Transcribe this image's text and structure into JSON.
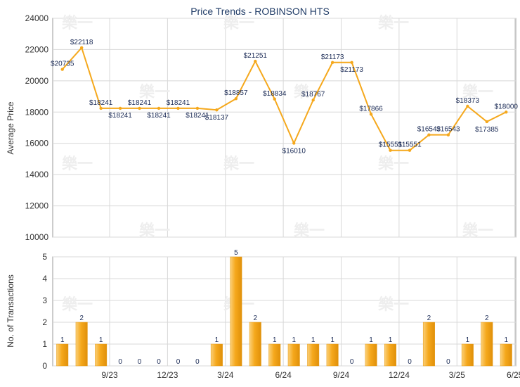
{
  "chart_data": [
    {
      "type": "line",
      "title": "Price Trends - ROBINSON HTS",
      "ylabel": "Average Price",
      "ylim": [
        10000,
        24000
      ],
      "yticks": [
        10000,
        12000,
        14000,
        16000,
        18000,
        20000,
        22000,
        24000
      ],
      "color": "#f5a81c",
      "series": [
        {
          "values": [
            20735,
            22118,
            18241,
            18241,
            18241,
            18241,
            18241,
            18241,
            18137,
            18857,
            21251,
            18834,
            16010,
            18767,
            21173,
            21173,
            17866,
            15551,
            15551,
            16543,
            16543,
            18373,
            17385,
            18000
          ],
          "labels": [
            "$20735",
            "$22118",
            "$18241",
            "$18241",
            "$18241",
            "$18241",
            "$18241",
            "$18241",
            "$18137",
            "$18857",
            "$21251",
            "$18834",
            "$16010",
            "$18767",
            "$21173",
            "$21173",
            "$17866",
            "$15551",
            "$15551",
            "$16543",
            "$16543",
            "$18373",
            "$17385",
            "$18000"
          ]
        }
      ]
    },
    {
      "type": "bar",
      "ylabel": "No. of Transactions",
      "ylim": [
        0,
        5
      ],
      "yticks": [
        0,
        1,
        2,
        3,
        4,
        5
      ],
      "color": "#f5a81c",
      "values": [
        1,
        2,
        1,
        0,
        0,
        0,
        0,
        0,
        1,
        5,
        2,
        1,
        1,
        1,
        1,
        0,
        1,
        1,
        0,
        2,
        0,
        1,
        2,
        1
      ],
      "value_labels": [
        "1",
        "2",
        "1",
        "0",
        "0",
        "0",
        "0",
        "0",
        "1",
        "5",
        "2",
        "1",
        "1",
        "1",
        "1",
        "0",
        "1",
        "1",
        "0",
        "2",
        "0",
        "1",
        "2",
        "1"
      ]
    }
  ],
  "x_axis": {
    "tick_labels": [
      "9/23",
      "12/23",
      "3/24",
      "6/24",
      "9/24",
      "12/24",
      "3/25",
      "6/25"
    ]
  },
  "watermark": "樂一"
}
